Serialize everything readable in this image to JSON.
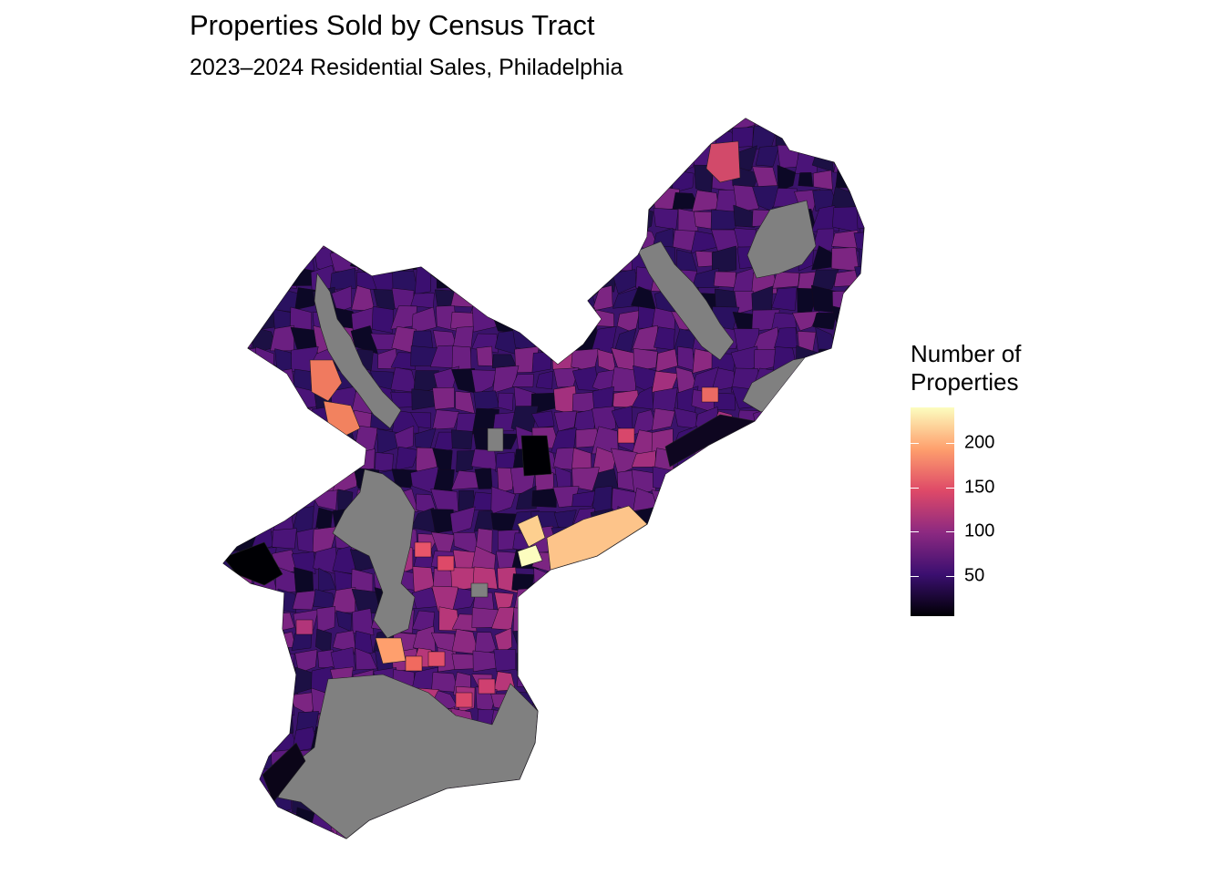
{
  "title": "Properties Sold by Census Tract",
  "subtitle": "2023–2024 Residential Sales, Philadelphia",
  "legend": {
    "title_line1": "Number of",
    "title_line2": "Properties",
    "ticks": [
      "50",
      "100",
      "150",
      "200"
    ],
    "min": 5,
    "max": 240,
    "palette": [
      "#000004",
      "#3b0f70",
      "#8c2981",
      "#de4968",
      "#fe9f6d",
      "#fcfdbf"
    ],
    "missing_color": "#808080"
  }
}
